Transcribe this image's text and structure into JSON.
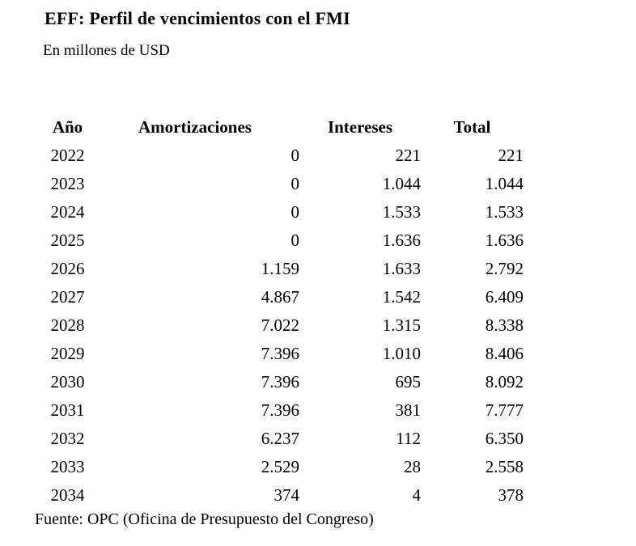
{
  "title": "EFF: Perfil de vencimientos con el FMI",
  "subtitle": "En millones de USD",
  "source": "Fuente: OPC (Oficina de Presupuesto del Congreso)",
  "table": {
    "columns": [
      "Año",
      "Amortizaciones",
      "Intereses",
      "Total"
    ],
    "rows": [
      [
        "2022",
        "0",
        "221",
        "221"
      ],
      [
        "2023",
        "0",
        "1.044",
        "1.044"
      ],
      [
        "2024",
        "0",
        "1.533",
        "1.533"
      ],
      [
        "2025",
        "0",
        "1.636",
        "1.636"
      ],
      [
        "2026",
        "1.159",
        "1.633",
        "2.792"
      ],
      [
        "2027",
        "4.867",
        "1.542",
        "6.409"
      ],
      [
        "2028",
        "7.022",
        "1.315",
        "8.338"
      ],
      [
        "2029",
        "7.396",
        "1.010",
        "8.406"
      ],
      [
        "2030",
        "7.396",
        "695",
        "8.092"
      ],
      [
        "2031",
        "7.396",
        "381",
        "7.777"
      ],
      [
        "2032",
        "6.237",
        "112",
        "6.350"
      ],
      [
        "2033",
        "2.529",
        "28",
        "2.558"
      ],
      [
        "2034",
        "374",
        "4",
        "378"
      ]
    ]
  },
  "chart_data": {
    "type": "table",
    "title": "EFF: Perfil de vencimientos con el FMI",
    "units": "En millones de USD",
    "source": "Fuente: OPC (Oficina de Presupuesto del Congreso)",
    "categories": [
      2022,
      2023,
      2024,
      2025,
      2026,
      2027,
      2028,
      2029,
      2030,
      2031,
      2032,
      2033,
      2034
    ],
    "series": [
      {
        "name": "Amortizaciones",
        "values": [
          0,
          0,
          0,
          0,
          1159,
          4867,
          7022,
          7396,
          7396,
          7396,
          6237,
          2529,
          374
        ]
      },
      {
        "name": "Intereses",
        "values": [
          221,
          1044,
          1533,
          1636,
          1633,
          1542,
          1315,
          1010,
          695,
          381,
          112,
          28,
          4
        ]
      },
      {
        "name": "Total",
        "values": [
          221,
          1044,
          1533,
          1636,
          2792,
          6409,
          8338,
          8406,
          8092,
          7777,
          6350,
          2558,
          378
        ]
      }
    ],
    "number_format": "es-AR thousands separator '.'",
    "text_color": "#000000",
    "background_color": "#ffffff"
  }
}
